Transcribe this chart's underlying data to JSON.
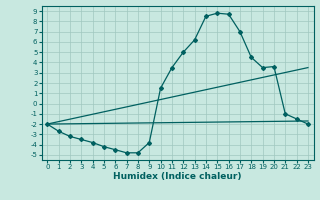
{
  "xlabel": "Humidex (Indice chaleur)",
  "bg_color": "#c8e8e0",
  "grid_color": "#a0c8c0",
  "line_color": "#006060",
  "xlim": [
    -0.5,
    23.5
  ],
  "ylim": [
    -5.5,
    9.5
  ],
  "xticks": [
    0,
    1,
    2,
    3,
    4,
    5,
    6,
    7,
    8,
    9,
    10,
    11,
    12,
    13,
    14,
    15,
    16,
    17,
    18,
    19,
    20,
    21,
    22,
    23
  ],
  "yticks": [
    -5,
    -4,
    -3,
    -2,
    -1,
    0,
    1,
    2,
    3,
    4,
    5,
    6,
    7,
    8,
    9
  ],
  "line1_x": [
    0,
    1,
    2,
    3,
    4,
    5,
    6,
    7,
    8,
    9,
    10,
    11,
    12,
    13,
    14,
    15,
    16,
    17,
    18,
    19,
    20,
    21,
    22,
    23
  ],
  "line1_y": [
    -2.0,
    -2.7,
    -3.2,
    -3.5,
    -3.8,
    -4.2,
    -4.5,
    -4.8,
    -4.8,
    -3.8,
    1.5,
    3.5,
    5.0,
    6.2,
    8.5,
    8.8,
    8.7,
    7.0,
    4.5,
    3.5,
    3.6,
    -1.0,
    -1.5,
    -2.0
  ],
  "line2_x": [
    0,
    23
  ],
  "line2_y": [
    -2.0,
    3.5
  ],
  "line3_x": [
    0,
    23
  ],
  "line3_y": [
    -2.0,
    -1.7
  ],
  "marker": "D",
  "markersize": 2.0,
  "linewidth": 0.9,
  "tick_fontsize": 5.0,
  "xlabel_fontsize": 6.5
}
